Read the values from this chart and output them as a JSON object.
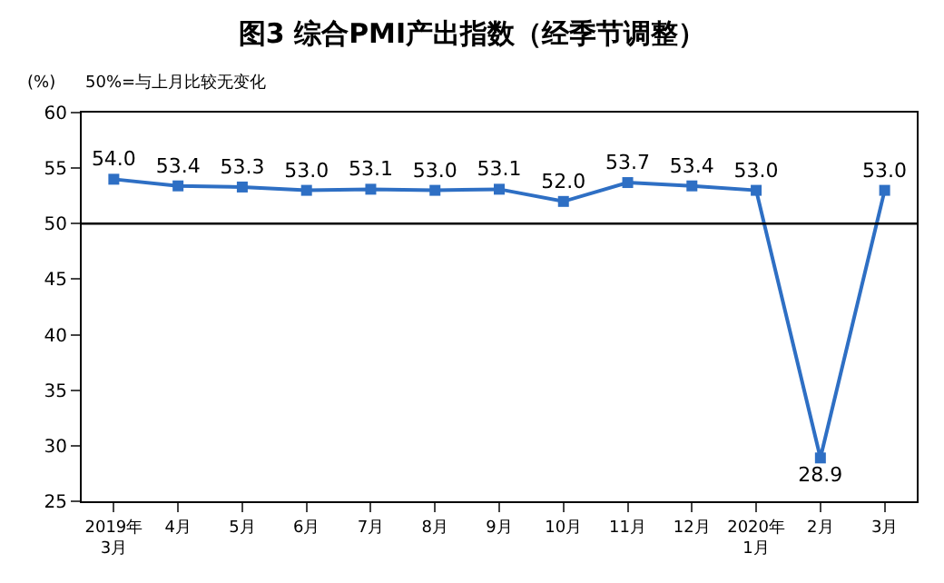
{
  "chart_data": {
    "type": "line",
    "title": "图3 综合PMI产出指数（经季节调整）",
    "categories": [
      "2019年\n3月",
      "4月",
      "5月",
      "6月",
      "7月",
      "8月",
      "9月",
      "10月",
      "11月",
      "12月",
      "2020年\n1月",
      "2月",
      "3月"
    ],
    "series": [
      {
        "color": "#2e6fc4",
        "values": [
          54.0,
          53.4,
          53.3,
          53.0,
          53.1,
          53.0,
          53.1,
          52.0,
          53.7,
          53.4,
          53.0,
          28.9,
          53.0
        ],
        "value_labels": [
          "54.0",
          "53.4",
          "53.3",
          "53.0",
          "53.1",
          "53.0",
          "53.1",
          "52.0",
          "53.7",
          "53.4",
          "53.0",
          "28.9",
          "53.0"
        ]
      }
    ],
    "ylim": [
      25,
      60
    ],
    "yticks": [
      25,
      30,
      35,
      40,
      45,
      50,
      55,
      60
    ],
    "ref_lines": [
      {
        "axis": "y",
        "value": 50,
        "color": "#000000"
      }
    ],
    "annotations": [
      "(%)",
      "50%=与上月比较无变化"
    ],
    "legend": false,
    "marker": "square",
    "line_style": "solid"
  }
}
